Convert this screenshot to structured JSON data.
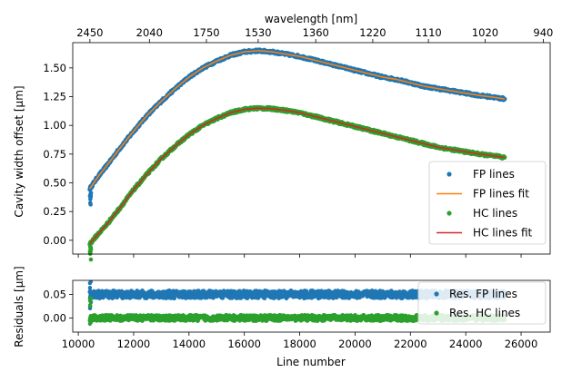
{
  "chart_data": [
    {
      "type": "scatter",
      "title": "",
      "xlabel": "Line number",
      "ylabel": "Cavity width offset [μm]",
      "top_axis_label": "wavelength [nm]",
      "top_ticks": [
        {
          "x": 10420,
          "label": "2450"
        },
        {
          "x": 12570,
          "label": "2040"
        },
        {
          "x": 14630,
          "label": "1750"
        },
        {
          "x": 16500,
          "label": "1530"
        },
        {
          "x": 18580,
          "label": "1360"
        },
        {
          "x": 20640,
          "label": "1220"
        },
        {
          "x": 22650,
          "label": "1110"
        },
        {
          "x": 24700,
          "label": "1020"
        },
        {
          "x": 26800,
          "label": "940"
        }
      ],
      "xlim": [
        9800,
        27050
      ],
      "ylim": [
        -0.12,
        1.72
      ],
      "x_ticks": [
        10000,
        12000,
        14000,
        16000,
        18000,
        20000,
        22000,
        24000,
        26000
      ],
      "y_ticks": [
        0.0,
        0.25,
        0.5,
        0.75,
        1.0,
        1.25,
        1.5
      ],
      "y_tick_labels": [
        "0.00",
        "0.25",
        "0.50",
        "0.75",
        "1.00",
        "1.25",
        "1.50"
      ],
      "legend_position": "lower-right",
      "series": [
        {
          "name": "FP lines",
          "kind": "points",
          "color": "#1f77b4",
          "x": [
            10420,
            10700,
            11000,
            11500,
            12000,
            12500,
            13000,
            13500,
            14000,
            14500,
            15000,
            15500,
            16000,
            16500,
            17000,
            17500,
            18000,
            18500,
            19000,
            19500,
            20000,
            20500,
            21000,
            21500,
            22000,
            22500,
            23000,
            23500,
            24000,
            24500,
            25000,
            25400
          ],
          "y": [
            0.45,
            0.55,
            0.64,
            0.8,
            0.95,
            1.09,
            1.21,
            1.32,
            1.42,
            1.5,
            1.56,
            1.61,
            1.64,
            1.65,
            1.64,
            1.62,
            1.6,
            1.57,
            1.54,
            1.51,
            1.48,
            1.45,
            1.42,
            1.4,
            1.37,
            1.34,
            1.32,
            1.3,
            1.28,
            1.26,
            1.245,
            1.23
          ]
        },
        {
          "name": "FP lines fit",
          "kind": "line",
          "color": "#ff7f0e",
          "x": [
            10420,
            10700,
            11000,
            11500,
            12000,
            12500,
            13000,
            13500,
            14000,
            14500,
            15000,
            15500,
            16000,
            16500,
            17000,
            17500,
            18000,
            18500,
            19000,
            19500,
            20000,
            20500,
            21000,
            21500,
            22000,
            22500,
            23000,
            23500,
            24000,
            24500,
            25000,
            25400
          ],
          "y": [
            0.45,
            0.55,
            0.64,
            0.8,
            0.95,
            1.09,
            1.21,
            1.32,
            1.42,
            1.5,
            1.56,
            1.61,
            1.64,
            1.65,
            1.64,
            1.62,
            1.6,
            1.57,
            1.54,
            1.51,
            1.48,
            1.45,
            1.42,
            1.4,
            1.37,
            1.34,
            1.32,
            1.3,
            1.28,
            1.26,
            1.245,
            1.23
          ]
        },
        {
          "name": "HC lines",
          "kind": "points",
          "color": "#2ca02c",
          "x": [
            10420,
            10700,
            11000,
            11500,
            12000,
            12500,
            13000,
            13500,
            14000,
            14500,
            15000,
            15500,
            16000,
            16500,
            17000,
            17500,
            18000,
            18500,
            19000,
            19500,
            20000,
            20500,
            21000,
            21500,
            22000,
            22500,
            23000,
            23500,
            24000,
            24500,
            25000,
            25400
          ],
          "y": [
            -0.03,
            0.05,
            0.13,
            0.28,
            0.44,
            0.58,
            0.71,
            0.82,
            0.92,
            1.0,
            1.06,
            1.11,
            1.14,
            1.15,
            1.145,
            1.13,
            1.11,
            1.08,
            1.05,
            1.02,
            0.99,
            0.96,
            0.93,
            0.9,
            0.87,
            0.84,
            0.81,
            0.79,
            0.77,
            0.75,
            0.735,
            0.72
          ]
        },
        {
          "name": "HC lines fit",
          "kind": "line",
          "color": "#d62728",
          "x": [
            10420,
            10700,
            11000,
            11500,
            12000,
            12500,
            13000,
            13500,
            14000,
            14500,
            15000,
            15500,
            16000,
            16500,
            17000,
            17500,
            18000,
            18500,
            19000,
            19500,
            20000,
            20500,
            21000,
            21500,
            22000,
            22500,
            23000,
            23500,
            24000,
            24500,
            25000,
            25400
          ],
          "y": [
            -0.03,
            0.05,
            0.13,
            0.28,
            0.44,
            0.58,
            0.71,
            0.82,
            0.92,
            1.0,
            1.06,
            1.11,
            1.14,
            1.15,
            1.145,
            1.13,
            1.11,
            1.08,
            1.05,
            1.02,
            0.99,
            0.96,
            0.93,
            0.9,
            0.87,
            0.84,
            0.81,
            0.79,
            0.77,
            0.75,
            0.735,
            0.72
          ]
        }
      ]
    },
    {
      "type": "scatter",
      "title": "",
      "xlabel": "Line number",
      "ylabel": "Residuals [μm]",
      "xlim": [
        9800,
        27050
      ],
      "ylim": [
        -0.03,
        0.08
      ],
      "x_ticks": [
        10000,
        12000,
        14000,
        16000,
        18000,
        20000,
        22000,
        24000,
        26000
      ],
      "x_tick_labels": [
        "10000",
        "12000",
        "14000",
        "16000",
        "18000",
        "20000",
        "22000",
        "24000",
        "26000"
      ],
      "y_ticks": [
        0.0,
        0.05
      ],
      "y_tick_labels": [
        "0.00",
        "0.05"
      ],
      "legend_position": "upper-right",
      "series": [
        {
          "name": "Res. FP lines",
          "kind": "band",
          "color": "#1f77b4",
          "x_start": 10420,
          "x_end": 25400,
          "center": 0.05,
          "spread": 0.008
        },
        {
          "name": "Res. HC lines",
          "kind": "band",
          "color": "#2ca02c",
          "x_start": 10420,
          "x_end": 25400,
          "center": 0.0,
          "spread": 0.006
        }
      ]
    }
  ]
}
